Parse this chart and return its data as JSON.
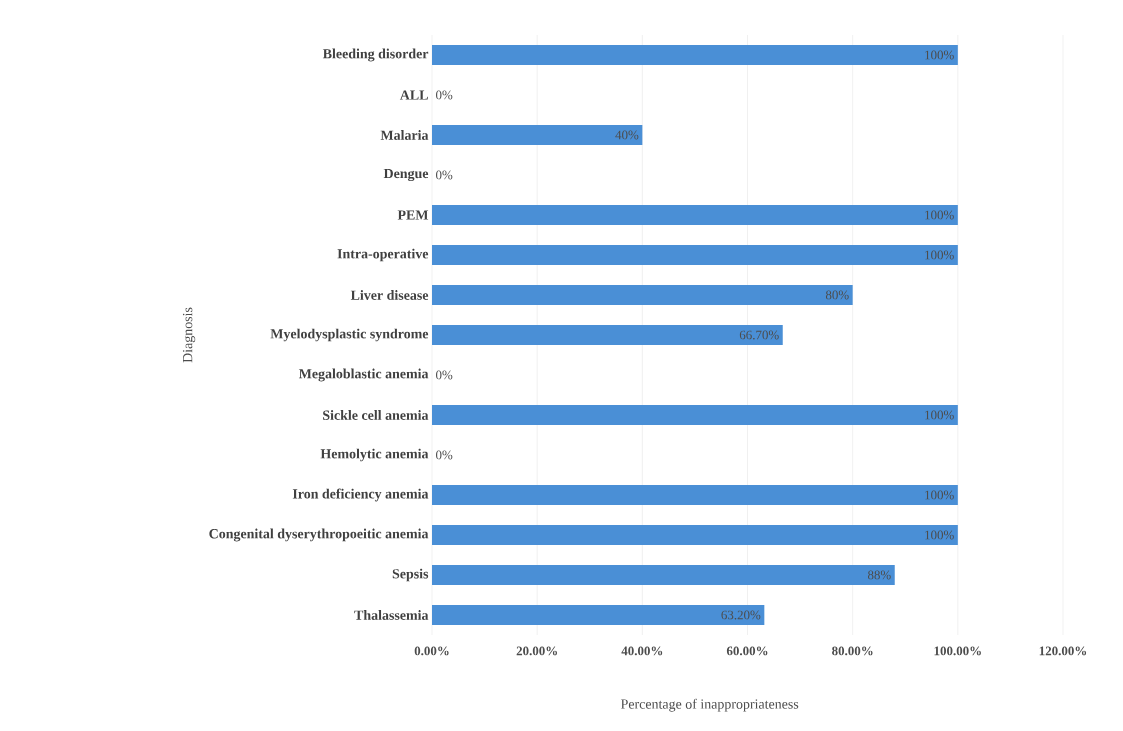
{
  "chart_data": {
    "type": "bar",
    "orientation": "horizontal",
    "xlabel": "Percentage of inappropriateness",
    "ylabel": "Diagnosis",
    "categories": [
      "Bleeding disorder",
      "ALL",
      "Malaria",
      "Dengue",
      "PEM",
      "Intra-operative",
      "Liver disease",
      "Myelodysplastic syndrome",
      "Megaloblastic anemia",
      "Sickle cell anemia",
      "Hemolytic anemia",
      "Iron deficiency anemia",
      "Congenital dyserythropoeitic anemia",
      "Sepsis",
      "Thalassemia"
    ],
    "values": [
      100,
      0,
      40,
      0,
      100,
      100,
      80,
      66.7,
      0,
      100,
      0,
      100,
      100,
      88,
      63.2
    ],
    "value_labels": [
      "100%",
      "0%",
      "40%",
      "0%",
      "100%",
      "100%",
      "80%",
      "66.70%",
      "0%",
      "100%",
      "0%",
      "100%",
      "100%",
      "88%",
      "63.20%"
    ],
    "color": "#4a8fd6",
    "xlim": [
      0,
      120
    ],
    "xticks": [
      {
        "value": 0,
        "label": "0.00%"
      },
      {
        "value": 20,
        "label": "20.00%"
      },
      {
        "value": 40,
        "label": "40.00%"
      },
      {
        "value": 60,
        "label": "60.00%"
      },
      {
        "value": 80,
        "label": "80.00%"
      },
      {
        "value": 100,
        "label": "100.00%"
      },
      {
        "value": 120,
        "label": "120.00%"
      }
    ],
    "grid": "x"
  }
}
